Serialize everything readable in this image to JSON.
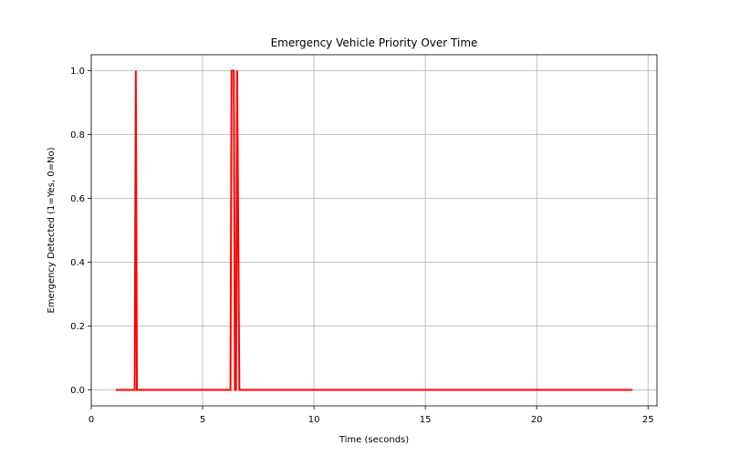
{
  "chart_data": {
    "type": "line",
    "title": "Emergency Vehicle Priority Over Time",
    "xlabel": "Time (seconds)",
    "ylabel": "Emergency Detected (1=Yes, 0=No)",
    "xlim": [
      0,
      25.4
    ],
    "ylim": [
      -0.05,
      1.05
    ],
    "xticks": [
      0,
      5,
      10,
      15,
      20,
      25
    ],
    "yticks": [
      0.0,
      0.2,
      0.4,
      0.6,
      0.8,
      1.0
    ],
    "xtick_labels": [
      "0",
      "5",
      "10",
      "15",
      "20",
      "25"
    ],
    "ytick_labels": [
      "0.0",
      "0.2",
      "0.4",
      "0.6",
      "0.8",
      "1.0"
    ],
    "grid": true,
    "line_color": "#ff0000",
    "series": [
      {
        "x": [
          1.1,
          1.95,
          2.0,
          2.05,
          6.25,
          6.3,
          6.4,
          6.45,
          6.5,
          6.55,
          6.65,
          24.3
        ],
        "y": [
          0,
          0,
          1,
          0,
          0,
          1,
          1,
          0,
          0,
          1,
          0,
          0
        ]
      }
    ]
  }
}
